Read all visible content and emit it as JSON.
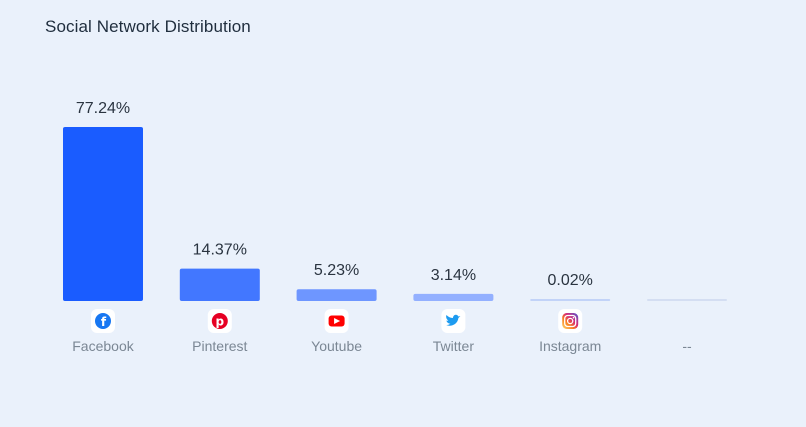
{
  "title": "Social Network Distribution",
  "chart_data": {
    "type": "bar",
    "categories": [
      "Facebook",
      "Pinterest",
      "Youtube",
      "Twitter",
      "Instagram",
      "--"
    ],
    "values": [
      77.24,
      14.37,
      5.23,
      3.14,
      0.02,
      null
    ],
    "value_labels": [
      "77.24%",
      "14.37%",
      "5.23%",
      "3.14%",
      "0.02%",
      ""
    ],
    "icons": [
      "facebook-icon",
      "pinterest-icon",
      "youtube-icon",
      "twitter-icon",
      "instagram-icon",
      ""
    ],
    "colors": [
      "#1a5cff",
      "#4277ff",
      "#6e96ff",
      "#93b0ff",
      "#c2d3f8",
      "#d4def2"
    ],
    "title": "Social Network Distribution",
    "xlabel": "",
    "ylabel": "",
    "grid": false,
    "legend": "none"
  }
}
